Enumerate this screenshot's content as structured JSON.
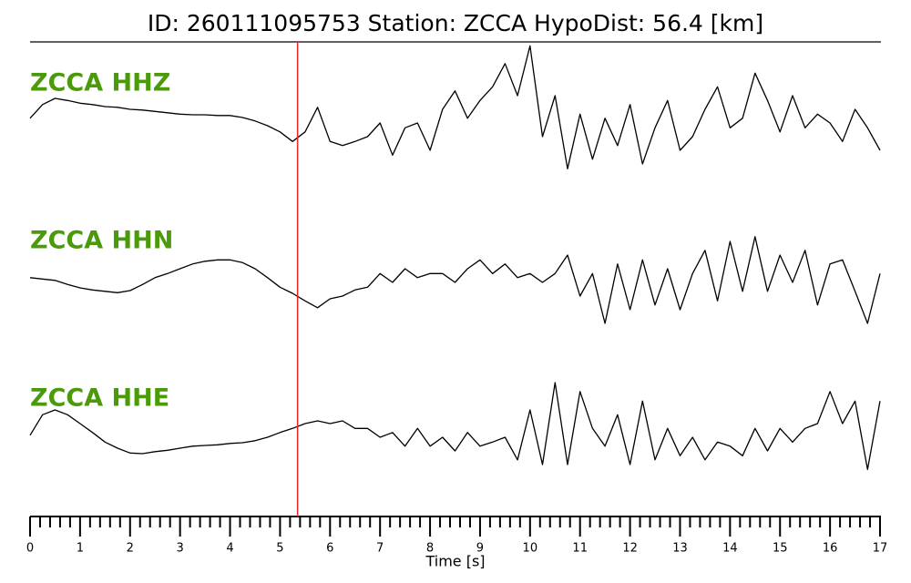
{
  "chart_data": {
    "type": "line",
    "title": "ID: 260111095753   Station: ZCCA   HypoDist:    56.4 [km]",
    "xlabel": "Time [s]",
    "xlim": [
      0,
      17
    ],
    "xticks": [
      0,
      1,
      2,
      3,
      4,
      5,
      6,
      7,
      8,
      9,
      10,
      11,
      12,
      13,
      14,
      15,
      16,
      17
    ],
    "ylim": [
      -1,
      1
    ],
    "label_color": "#4a9a0a",
    "pick": {
      "x": 5.35,
      "color": "#e8262a"
    },
    "x": [
      0,
      0.25,
      0.5,
      0.75,
      1,
      1.25,
      1.5,
      1.75,
      2,
      2.25,
      2.5,
      2.75,
      3,
      3.25,
      3.5,
      3.75,
      4,
      4.25,
      4.5,
      4.75,
      5,
      5.25,
      5.5,
      5.75,
      6,
      6.25,
      6.5,
      6.75,
      7,
      7.25,
      7.5,
      7.75,
      8,
      8.25,
      8.5,
      8.75,
      9,
      9.25,
      9.5,
      9.75,
      10,
      10.25,
      10.5,
      10.75,
      11,
      11.25,
      11.5,
      11.75,
      12,
      12.25,
      12.5,
      12.75,
      13,
      13.25,
      13.5,
      13.75,
      14,
      14.25,
      14.5,
      14.75,
      15,
      15.25,
      15.5,
      15.75,
      16,
      16.25,
      16.5,
      16.75,
      17
    ],
    "series": [
      {
        "name": "ZCCA HHZ",
        "color": "#000000",
        "values": [
          -0.09,
          0.11,
          0.2,
          0.17,
          0.13,
          0.11,
          0.08,
          0.07,
          0.04,
          0.03,
          0.01,
          -0.01,
          -0.03,
          -0.04,
          -0.04,
          -0.05,
          -0.05,
          -0.08,
          -0.13,
          -0.2,
          -0.29,
          -0.43,
          -0.29,
          0.07,
          -0.43,
          -0.49,
          -0.43,
          -0.36,
          -0.16,
          -0.63,
          -0.23,
          -0.16,
          -0.56,
          0.04,
          0.31,
          -0.09,
          0.17,
          0.37,
          0.71,
          0.24,
          0.97,
          -0.36,
          0.24,
          -0.83,
          -0.03,
          -0.69,
          -0.09,
          -0.49,
          0.11,
          -0.76,
          -0.23,
          0.17,
          -0.56,
          -0.36,
          0.04,
          0.37,
          -0.23,
          -0.09,
          0.57,
          0.17,
          -0.29,
          0.24,
          -0.23,
          -0.03,
          -0.16,
          -0.43,
          0.04,
          -0.23,
          -0.56
        ]
      },
      {
        "name": "ZCCA HHN",
        "color": "#000000",
        "values": [
          0.07,
          0.05,
          0.03,
          -0.03,
          -0.08,
          -0.11,
          -0.13,
          -0.15,
          -0.12,
          -0.03,
          0.07,
          0.13,
          0.2,
          0.27,
          0.31,
          0.33,
          0.33,
          0.29,
          0.2,
          0.07,
          -0.07,
          -0.16,
          -0.27,
          -0.37,
          -0.24,
          -0.2,
          -0.11,
          -0.07,
          0.13,
          0,
          0.2,
          0.07,
          0.13,
          0.13,
          0,
          0.2,
          0.33,
          0.13,
          0.27,
          0.07,
          0.13,
          0,
          0.13,
          0.4,
          -0.2,
          0.13,
          -0.6,
          0.27,
          -0.4,
          0.33,
          -0.33,
          0.2,
          -0.4,
          0.13,
          0.47,
          -0.27,
          0.6,
          -0.13,
          0.67,
          -0.13,
          0.4,
          0,
          0.47,
          -0.33,
          0.27,
          0.33,
          -0.13,
          -0.6,
          0.13
        ]
      },
      {
        "name": "ZCCA HHE",
        "color": "#000000",
        "values": [
          0.03,
          0.33,
          0.4,
          0.33,
          0.2,
          0.07,
          -0.07,
          -0.16,
          -0.23,
          -0.24,
          -0.21,
          -0.19,
          -0.16,
          -0.13,
          -0.12,
          -0.11,
          -0.09,
          -0.08,
          -0.05,
          0,
          0.07,
          0.13,
          0.2,
          0.24,
          0.2,
          0.24,
          0.13,
          0.13,
          0,
          0.07,
          -0.13,
          0.13,
          -0.13,
          0,
          -0.2,
          0.07,
          -0.13,
          -0.07,
          0,
          -0.33,
          0.4,
          -0.4,
          0.8,
          -0.4,
          0.67,
          0.13,
          -0.13,
          0.33,
          -0.4,
          0.53,
          -0.33,
          0.13,
          -0.27,
          0,
          -0.33,
          -0.07,
          -0.13,
          -0.27,
          0.13,
          -0.2,
          0.13,
          -0.07,
          0.13,
          0.2,
          0.67,
          0.2,
          0.53,
          -0.47,
          0.53
        ]
      }
    ]
  }
}
